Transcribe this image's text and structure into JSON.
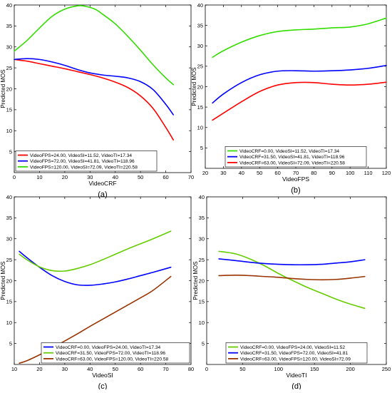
{
  "figure": {
    "panels": [
      "(a)",
      "(b)",
      "(c)",
      "(d)"
    ]
  },
  "chart_data": [
    {
      "type": "line",
      "panel_label": "(a)",
      "xlabel": "VideoCRF",
      "ylabel": "Predicted MOS",
      "xlim": [
        0,
        70
      ],
      "ylim": [
        0,
        40
      ],
      "xticks": [
        0,
        10,
        20,
        30,
        40,
        50,
        60,
        70
      ],
      "yticks": [
        5,
        10,
        15,
        20,
        25,
        30,
        35,
        40
      ],
      "legend_position": "bottom-left",
      "series": [
        {
          "name": "VideoFPS=24.00, VideoSI=11.52, VideoTI=17.34",
          "color": "#ff0000",
          "x": [
            0,
            5,
            10,
            15,
            20,
            25,
            30,
            35,
            40,
            45,
            50,
            55,
            60,
            63
          ],
          "y": [
            27.0,
            26.6,
            26.0,
            25.4,
            24.8,
            24.1,
            23.4,
            22.6,
            21.6,
            20.3,
            18.3,
            15.3,
            10.8,
            7.8
          ]
        },
        {
          "name": "VideoFPS=72.00, VideoSI=41.81, VideoTI=118.96",
          "color": "#0000ff",
          "x": [
            0,
            5,
            10,
            15,
            20,
            25,
            30,
            35,
            40,
            45,
            50,
            55,
            60,
            63
          ],
          "y": [
            27.0,
            27.2,
            27.0,
            26.4,
            25.6,
            24.6,
            23.8,
            23.3,
            23.0,
            22.6,
            21.7,
            19.8,
            16.3,
            13.8
          ]
        },
        {
          "name": "VideoFPS=120.00, VideoSI=72.09, VideoTI=220.58",
          "color": "#33dd00",
          "x": [
            0,
            5,
            10,
            15,
            20,
            25,
            28,
            32,
            35,
            40,
            45,
            50,
            55,
            60,
            63
          ],
          "y": [
            29.0,
            31.5,
            34.5,
            37.3,
            39.0,
            39.8,
            39.7,
            39.0,
            37.8,
            35.5,
            32.5,
            29.2,
            25.7,
            22.6,
            21.0
          ]
        }
      ]
    },
    {
      "type": "line",
      "panel_label": "(b)",
      "xlabel": "VideoFPS",
      "ylabel": "Predicted MOS",
      "xlim": [
        20,
        120
      ],
      "ylim": [
        0,
        40
      ],
      "xticks": [
        20,
        30,
        40,
        50,
        60,
        70,
        80,
        90,
        100,
        110,
        120
      ],
      "yticks": [
        5,
        10,
        15,
        20,
        25,
        30,
        35,
        40
      ],
      "legend_position": "bottom-center",
      "series": [
        {
          "name": "VideoCRF=0.00, VideoSI=11.52, VideoTI=17.34",
          "color": "#33dd00",
          "x": [
            24,
            30,
            40,
            50,
            60,
            70,
            80,
            90,
            100,
            110,
            120
          ],
          "y": [
            27.2,
            28.8,
            30.9,
            32.5,
            33.5,
            33.9,
            34.1,
            34.4,
            34.6,
            35.4,
            36.8
          ]
        },
        {
          "name": "VideoCRF=31.50, VideoSI=41.81, VideoTI=118.96",
          "color": "#0000ff",
          "x": [
            24,
            30,
            40,
            50,
            60,
            70,
            80,
            90,
            100,
            110,
            120
          ],
          "y": [
            16.0,
            18.2,
            21.0,
            22.9,
            23.8,
            23.9,
            23.8,
            23.9,
            24.1,
            24.5,
            25.2
          ]
        },
        {
          "name": "VideoCRF=63.00, VideoSI=72.09, VideoTI=220.58",
          "color": "#ff0000",
          "x": [
            24,
            30,
            40,
            50,
            60,
            70,
            80,
            90,
            100,
            110,
            120
          ],
          "y": [
            11.8,
            13.5,
            16.3,
            18.8,
            20.4,
            21.0,
            21.0,
            20.6,
            20.4,
            20.6,
            21.1
          ]
        }
      ]
    },
    {
      "type": "line",
      "panel_label": "(c)",
      "xlabel": "VideoSI",
      "ylabel": "Predicted MOS",
      "xlim": [
        10,
        80
      ],
      "ylim": [
        0,
        40
      ],
      "xticks": [
        10,
        20,
        30,
        40,
        50,
        60,
        70,
        80
      ],
      "yticks": [
        5,
        10,
        15,
        20,
        25,
        30,
        35,
        40
      ],
      "legend_position": "bottom-right",
      "series": [
        {
          "name": "VideoCRF=0.00, VideoFPS=24.00, VideoTI=17.34",
          "color": "#0000ff",
          "x": [
            12,
            15,
            20,
            25,
            30,
            35,
            40,
            45,
            50,
            55,
            60,
            65,
            72
          ],
          "y": [
            27.0,
            25.5,
            23.2,
            21.2,
            19.8,
            19.0,
            18.9,
            19.2,
            19.7,
            20.4,
            21.2,
            22.0,
            23.2
          ]
        },
        {
          "name": "VideoCRF=31.50, VideoFPS=72.00, VideoTI=118.96",
          "color": "#66cc00",
          "x": [
            12,
            15,
            20,
            25,
            30,
            35,
            40,
            45,
            50,
            55,
            60,
            65,
            72
          ],
          "y": [
            26.3,
            25.0,
            23.3,
            22.4,
            22.3,
            22.9,
            23.8,
            25.0,
            26.3,
            27.6,
            28.8,
            30.0,
            31.8
          ]
        },
        {
          "name": "VideoCRF=63.00, VideoFPS=120.00, VideoTI=220.58",
          "color": "#993300",
          "x": [
            12,
            15,
            20,
            25,
            30,
            35,
            40,
            45,
            50,
            55,
            60,
            65,
            72
          ],
          "y": [
            0.3,
            0.9,
            2.3,
            3.9,
            5.6,
            7.3,
            9.1,
            10.8,
            12.5,
            14.2,
            15.9,
            17.7,
            21.0
          ]
        }
      ]
    },
    {
      "type": "line",
      "panel_label": "(d)",
      "xlabel": "VideoTI",
      "ylabel": "Predicted MOS",
      "xlim": [
        0,
        250
      ],
      "ylim": [
        0,
        40
      ],
      "xticks": [
        0,
        50,
        100,
        150,
        200,
        250
      ],
      "yticks": [
        5,
        10,
        15,
        20,
        25,
        30,
        35,
        40
      ],
      "legend_position": "bottom-center",
      "series": [
        {
          "name": "VideoCRF=0.00, VideoFPS=24.00, VideoSI=11.52",
          "color": "#66cc00",
          "x": [
            17,
            40,
            60,
            80,
            100,
            120,
            140,
            160,
            180,
            200,
            220
          ],
          "y": [
            27.0,
            26.4,
            25.2,
            23.6,
            21.7,
            20.0,
            18.4,
            17.0,
            15.6,
            14.4,
            13.4
          ]
        },
        {
          "name": "VideoCRF=31.50, VideoFPS=72.00, VideoSI=41.81",
          "color": "#0000ff",
          "x": [
            17,
            40,
            60,
            80,
            100,
            120,
            140,
            160,
            180,
            200,
            220
          ],
          "y": [
            25.2,
            24.8,
            24.4,
            24.1,
            23.9,
            23.8,
            23.8,
            23.9,
            24.2,
            24.5,
            25.0
          ]
        },
        {
          "name": "VideoCRF=63.00, VideoFPS=120.00, VideoSI=72.09",
          "color": "#993300",
          "x": [
            17,
            40,
            60,
            80,
            100,
            120,
            140,
            160,
            180,
            200,
            220
          ],
          "y": [
            21.2,
            21.3,
            21.2,
            21.0,
            20.8,
            20.5,
            20.3,
            20.2,
            20.3,
            20.6,
            21.0
          ]
        }
      ]
    }
  ]
}
